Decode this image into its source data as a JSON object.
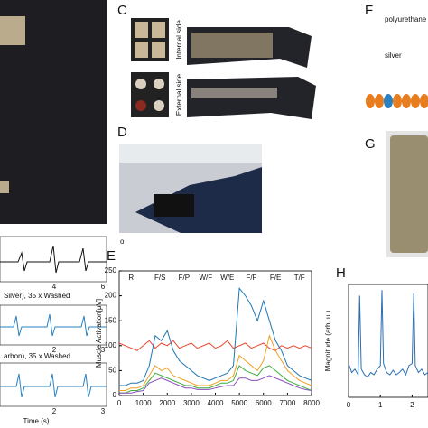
{
  "figure": {
    "panel_labels": {
      "c": "C",
      "d": "D",
      "e": "E",
      "f": "F",
      "g": "G",
      "h": "H"
    },
    "c": {
      "internal": "Internal side",
      "external": "External side"
    },
    "f": {
      "top": "polyurethane",
      "mid": "silver"
    },
    "d": {
      "corner": "o"
    },
    "left": {
      "traces": [
        {
          "ticks": [
            4,
            6
          ]
        },
        {
          "caption": "Silver), 35 x Washed",
          "ticks": [
            2,
            3
          ]
        },
        {
          "caption": "arbon), 35 x Washed",
          "ticks": [
            2,
            3
          ]
        }
      ],
      "xlabel": "Time (s)"
    }
  },
  "chart_data": [
    {
      "type": "line",
      "ylabel": "Muscle Activation[μV]",
      "x": [
        0,
        250,
        500,
        750,
        1000,
        1250,
        1500,
        1750,
        2000,
        2250,
        2500,
        2750,
        3000,
        3250,
        3500,
        3750,
        4000,
        4250,
        4500,
        4750,
        5000,
        5250,
        5500,
        5750,
        6000,
        6250,
        6500,
        6750,
        7000,
        7250,
        7500,
        7750,
        8000
      ],
      "xlim": [
        0,
        8000
      ],
      "xticks": [
        0,
        1000,
        2000,
        3000,
        4000,
        5000,
        6000,
        7000,
        8000
      ],
      "ylim": [
        0,
        250
      ],
      "yticks": [
        0,
        50,
        100,
        150,
        200,
        250
      ],
      "annotations": [
        {
          "x": 500,
          "label": "R"
        },
        {
          "x": 1700,
          "label": "F/S"
        },
        {
          "x": 2700,
          "label": "F/P"
        },
        {
          "x": 3600,
          "label": "W/F"
        },
        {
          "x": 4500,
          "label": "W/E"
        },
        {
          "x": 5500,
          "label": "F/F"
        },
        {
          "x": 6500,
          "label": "F/E"
        },
        {
          "x": 7500,
          "label": "T/F"
        }
      ],
      "series": [
        {
          "color": "#e8462a",
          "values": [
            105,
            100,
            95,
            90,
            100,
            110,
            95,
            105,
            100,
            110,
            95,
            100,
            105,
            95,
            100,
            105,
            95,
            100,
            110,
            95,
            100,
            105,
            95,
            100,
            105,
            95,
            90,
            100,
            95,
            100,
            95,
            100,
            95
          ]
        },
        {
          "color": "#f0a020",
          "values": [
            10,
            10,
            15,
            15,
            20,
            40,
            60,
            50,
            55,
            40,
            35,
            30,
            25,
            20,
            20,
            20,
            25,
            30,
            30,
            40,
            80,
            70,
            60,
            50,
            70,
            120,
            90,
            70,
            50,
            40,
            30,
            25,
            20
          ]
        },
        {
          "color": "#3cae3c",
          "values": [
            5,
            5,
            10,
            10,
            15,
            30,
            45,
            40,
            35,
            30,
            25,
            20,
            20,
            15,
            15,
            15,
            20,
            25,
            25,
            30,
            60,
            50,
            45,
            40,
            55,
            60,
            50,
            40,
            30,
            25,
            20,
            15,
            10
          ]
        },
        {
          "color": "#8a4fc0",
          "values": [
            5,
            5,
            5,
            8,
            10,
            25,
            30,
            35,
            30,
            25,
            20,
            15,
            15,
            12,
            12,
            12,
            15,
            18,
            20,
            20,
            35,
            35,
            30,
            30,
            35,
            40,
            35,
            30,
            25,
            20,
            15,
            12,
            10
          ]
        },
        {
          "color": "#1f77b4",
          "values": [
            20,
            20,
            25,
            25,
            30,
            60,
            120,
            110,
            130,
            90,
            70,
            60,
            50,
            40,
            35,
            30,
            35,
            40,
            45,
            60,
            215,
            200,
            180,
            150,
            190,
            150,
            110,
            90,
            60,
            50,
            40,
            35,
            30
          ]
        }
      ]
    },
    {
      "type": "line",
      "ylabel": "Magnitude (arb. u.)",
      "x": [
        0,
        0.1,
        0.2,
        0.3,
        0.35,
        0.4,
        0.5,
        0.6,
        0.7,
        0.8,
        0.9,
        1.0,
        1.05,
        1.1,
        1.2,
        1.3,
        1.4,
        1.5,
        1.6,
        1.7,
        1.8,
        1.9,
        2.0,
        2.05,
        2.1,
        2.2,
        2.3,
        2.4,
        2.5
      ],
      "xlim": [
        0,
        2.5
      ],
      "xticks": [
        0,
        1,
        2
      ],
      "ylim": [
        0,
        1
      ],
      "series": [
        {
          "color": "#2a6fb5",
          "values": [
            0.3,
            0.22,
            0.25,
            0.2,
            0.9,
            0.25,
            0.2,
            0.18,
            0.22,
            0.2,
            0.25,
            0.28,
            0.95,
            0.3,
            0.22,
            0.2,
            0.24,
            0.2,
            0.22,
            0.25,
            0.2,
            0.28,
            0.3,
            0.92,
            0.28,
            0.22,
            0.25,
            0.2,
            0.22
          ]
        }
      ]
    }
  ]
}
